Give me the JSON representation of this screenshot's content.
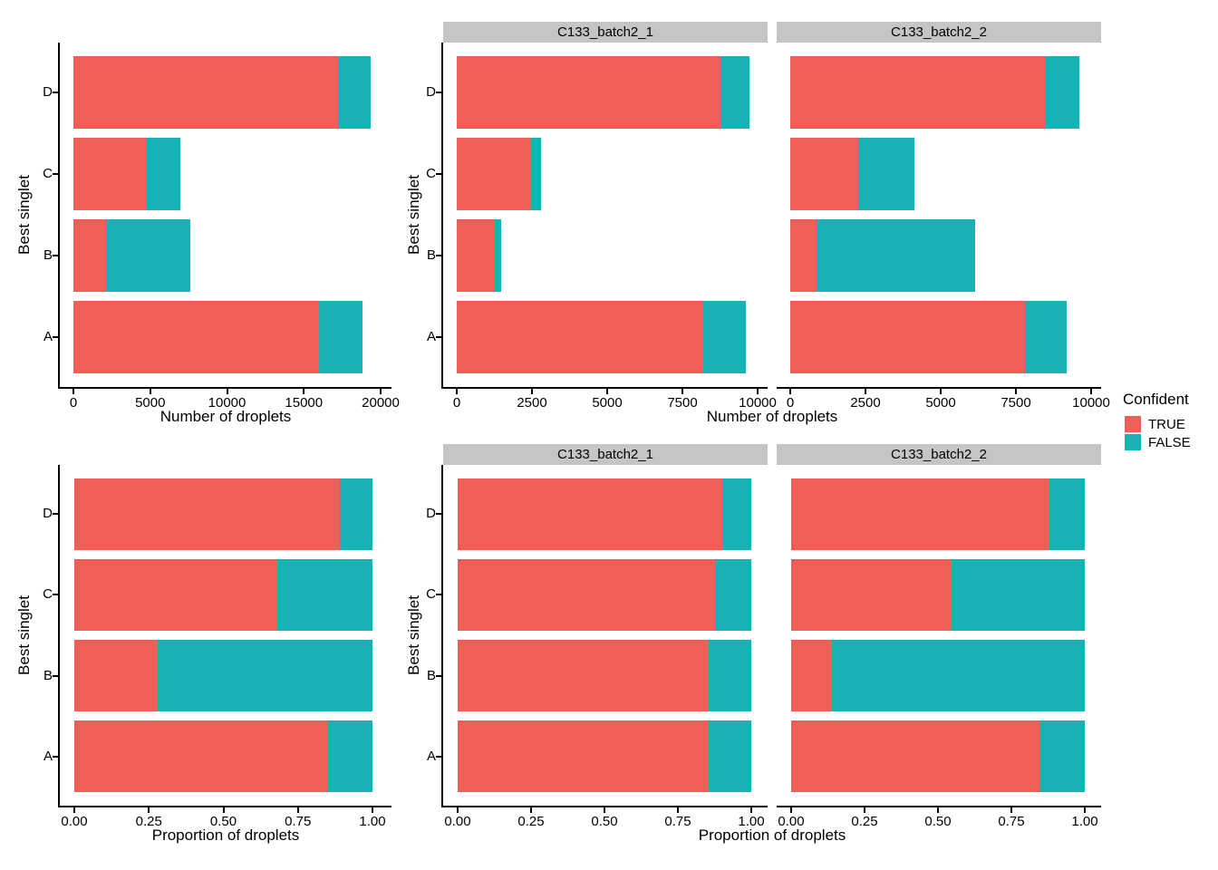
{
  "colors": {
    "true_fill": "#F25E57",
    "false_fill": "#18B2B4",
    "strip_bg": "#C5C5C5",
    "axis": "#000000",
    "background": "#FFFFFF"
  },
  "legend": {
    "title": "Confident",
    "items": [
      {
        "label": "TRUE",
        "color": "#F25E57"
      },
      {
        "label": "FALSE",
        "color": "#18B2B4"
      }
    ]
  },
  "chart_data": [
    {
      "id": "counts-all",
      "type": "bar",
      "orientation": "horizontal",
      "stacked": true,
      "grid": false,
      "xlabel": "Number of droplets",
      "ylabel": "Best singlet",
      "categories": [
        "D",
        "C",
        "B",
        "A"
      ],
      "series": [
        {
          "name": "TRUE",
          "values": [
            17230,
            4720,
            2130,
            16000
          ]
        },
        {
          "name": "FALSE",
          "values": [
            2100,
            2220,
            5485,
            2800
          ]
        }
      ],
      "xlim": [
        0,
        20000
      ],
      "xticks": [
        0,
        5000,
        10000,
        15000,
        20000
      ],
      "xtick_labels": [
        "0",
        "5000",
        "10000",
        "15000",
        "20000"
      ]
    },
    {
      "id": "counts-by-sample",
      "type": "bar",
      "orientation": "horizontal",
      "stacked": true,
      "grid": false,
      "xlabel": "Number of droplets",
      "ylabel": "Best singlet",
      "categories": [
        "D",
        "C",
        "B",
        "A"
      ],
      "facets": [
        {
          "label": "C133_batch2_1",
          "series": [
            {
              "name": "TRUE",
              "values": [
                8760,
                2460,
                1270,
                8200
              ]
            },
            {
              "name": "FALSE",
              "values": [
                960,
                350,
                215,
                1400
              ]
            }
          ]
        },
        {
          "label": "C133_batch2_2",
          "series": [
            {
              "name": "TRUE",
              "values": [
                8470,
                2260,
                860,
                7800
              ]
            },
            {
              "name": "FALSE",
              "values": [
                1140,
                1870,
                5270,
                1400
              ]
            }
          ]
        }
      ],
      "xlim": [
        0,
        10000
      ],
      "xticks": [
        0,
        2500,
        5000,
        7500,
        10000
      ],
      "xtick_labels": [
        "0",
        "2500",
        "5000",
        "7500",
        "10000"
      ]
    },
    {
      "id": "proportions-all",
      "type": "bar",
      "orientation": "horizontal",
      "stacked": true,
      "grid": false,
      "xlabel": "Proportion of droplets",
      "ylabel": "Best singlet",
      "categories": [
        "D",
        "C",
        "B",
        "A"
      ],
      "series": [
        {
          "name": "TRUE",
          "values": [
            0.891,
            0.68,
            0.28,
            0.851
          ]
        },
        {
          "name": "FALSE",
          "values": [
            0.109,
            0.32,
            0.72,
            0.149
          ]
        }
      ],
      "xlim": [
        0,
        1
      ],
      "xticks": [
        0,
        0.25,
        0.5,
        0.75,
        1
      ],
      "xtick_labels": [
        "0.00",
        "0.25",
        "0.50",
        "0.75",
        "1.00"
      ]
    },
    {
      "id": "proportions-by-sample",
      "type": "bar",
      "orientation": "horizontal",
      "stacked": true,
      "grid": false,
      "xlabel": "Proportion of droplets",
      "ylabel": "Best singlet",
      "categories": [
        "D",
        "C",
        "B",
        "A"
      ],
      "facets": [
        {
          "label": "C133_batch2_1",
          "series": [
            {
              "name": "TRUE",
              "values": [
                0.901,
                0.875,
                0.855,
                0.854
              ]
            },
            {
              "name": "FALSE",
              "values": [
                0.099,
                0.125,
                0.145,
                0.146
              ]
            }
          ]
        },
        {
          "label": "C133_batch2_2",
          "series": [
            {
              "name": "TRUE",
              "values": [
                0.881,
                0.547,
                0.14,
                0.848
              ]
            },
            {
              "name": "FALSE",
              "values": [
                0.119,
                0.453,
                0.86,
                0.152
              ]
            }
          ]
        }
      ],
      "xlim": [
        0,
        1
      ],
      "xticks": [
        0,
        0.25,
        0.5,
        0.75,
        1
      ],
      "xtick_labels": [
        "0.00",
        "0.25",
        "0.50",
        "0.75",
        "1.00"
      ]
    }
  ]
}
